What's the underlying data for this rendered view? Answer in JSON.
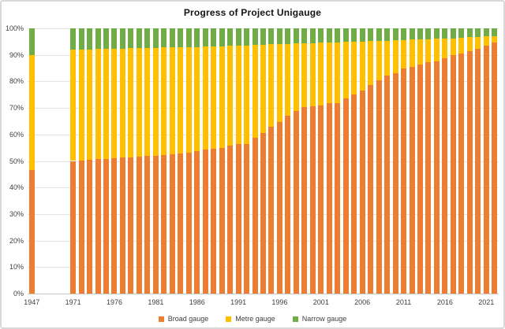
{
  "chart_data": {
    "type": "bar",
    "stacked": true,
    "units": "percent",
    "title": "Progress of Project Unigauge",
    "categories": [
      "1947",
      "1971",
      "1972",
      "1973",
      "1974",
      "1975",
      "1976",
      "1977",
      "1978",
      "1979",
      "1980",
      "1981",
      "1982",
      "1983",
      "1984",
      "1985",
      "1986",
      "1987",
      "1988",
      "1989",
      "1990",
      "1991",
      "1992",
      "1993",
      "1994",
      "1995",
      "1996",
      "1997",
      "1998",
      "1999",
      "2000",
      "2001",
      "2002",
      "2003",
      "2004",
      "2005",
      "2006",
      "2007",
      "2008",
      "2009",
      "2010",
      "2011",
      "2012",
      "2013",
      "2014",
      "2015",
      "2016",
      "2017",
      "2018",
      "2019",
      "2020",
      "2021",
      "2022"
    ],
    "series": [
      {
        "name": "Broad gauge",
        "color": "#ED7D31",
        "values": [
          46.5,
          50.0,
          50.2,
          50.4,
          50.6,
          50.8,
          51.0,
          51.2,
          51.4,
          51.6,
          51.8,
          52.0,
          52.3,
          52.6,
          52.9,
          53.2,
          53.8,
          54.3,
          54.7,
          55.0,
          55.9,
          56.3,
          56.5,
          58.8,
          60.5,
          63.0,
          64.8,
          67.2,
          68.8,
          70.2,
          70.5,
          70.9,
          71.7,
          71.9,
          73.7,
          75.2,
          76.7,
          78.7,
          80.4,
          82.1,
          83.1,
          84.8,
          85.4,
          86.3,
          87.1,
          87.6,
          88.6,
          89.8,
          90.6,
          91.4,
          92.4,
          93.4,
          94.7
        ]
      },
      {
        "name": "Metre gauge",
        "color": "#FFC000",
        "values": [
          43.5,
          42.0,
          41.9,
          41.7,
          41.6,
          41.4,
          41.3,
          41.2,
          41.1,
          40.9,
          40.8,
          40.7,
          40.5,
          40.2,
          40.0,
          39.8,
          39.2,
          38.8,
          38.5,
          38.3,
          37.6,
          37.3,
          37.1,
          34.9,
          33.3,
          31.0,
          29.3,
          27.0,
          25.5,
          24.2,
          24.0,
          23.7,
          23.0,
          22.9,
          21.2,
          19.8,
          18.4,
          16.5,
          14.9,
          13.3,
          12.4,
          10.8,
          10.3,
          9.5,
          8.8,
          8.4,
          7.5,
          6.4,
          5.9,
          5.2,
          4.4,
          3.5,
          2.3
        ]
      },
      {
        "name": "Narrow gauge",
        "color": "#70AD47",
        "values": [
          10.0,
          8.0,
          7.9,
          7.9,
          7.8,
          7.8,
          7.7,
          7.6,
          7.5,
          7.5,
          7.4,
          7.3,
          7.2,
          7.2,
          7.1,
          7.0,
          7.0,
          6.9,
          6.8,
          6.7,
          6.5,
          6.4,
          6.4,
          6.3,
          6.2,
          6.0,
          5.9,
          5.8,
          5.7,
          5.6,
          5.5,
          5.4,
          5.3,
          5.2,
          5.1,
          5.0,
          4.9,
          4.8,
          4.7,
          4.6,
          4.5,
          4.4,
          4.3,
          4.2,
          4.1,
          4.0,
          3.9,
          3.8,
          3.5,
          3.4,
          3.2,
          3.1,
          3.0
        ]
      }
    ],
    "ylim": [
      0,
      100
    ],
    "ytick_labels": [
      "0%",
      "10%",
      "20%",
      "30%",
      "40%",
      "50%",
      "60%",
      "70%",
      "80%",
      "90%",
      "100%"
    ],
    "xtick_labels": [
      "1947",
      "1971",
      "1976",
      "1981",
      "1986",
      "1991",
      "1996",
      "2001",
      "2006",
      "2011",
      "2016",
      "2021"
    ],
    "grid": "horizontal",
    "legend_position": "bottom",
    "gap_slots_after_first_category": 4,
    "gridline_color": "#E4E4E4",
    "axis_color": "#C4C4C4",
    "text_color": "#3f3f3f"
  }
}
